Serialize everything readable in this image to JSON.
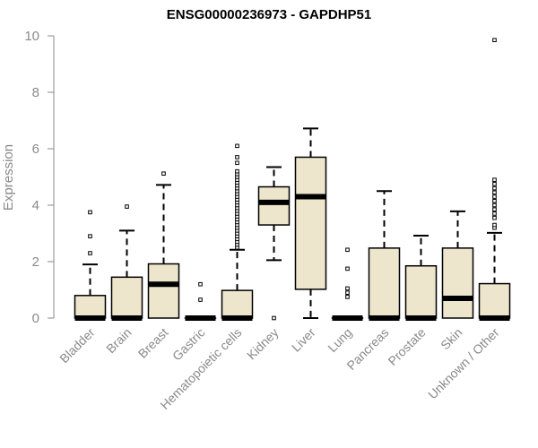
{
  "chart_data": {
    "type": "boxplot",
    "title": "ENSG00000236973 - GAPDHP51",
    "xlabel": "",
    "ylabel": "Expression",
    "ylim": [
      0,
      10
    ],
    "yticks": [
      0,
      2,
      4,
      6,
      8,
      10
    ],
    "grid": false,
    "legend": "none",
    "colors": {
      "box_fill": "#ede6cc",
      "stroke": "#000000",
      "axis": "#8a8a8a"
    },
    "categories": [
      "Bladder",
      "Brain",
      "Breast",
      "Gastric",
      "Hematopoietic cells",
      "Kidney",
      "Liver",
      "Lung",
      "Pancreas",
      "Prostate",
      "Skin",
      "Unknown / Other"
    ],
    "boxes": [
      {
        "category": "Bladder",
        "whisker_low": 0,
        "q1": 0,
        "median": 0,
        "q3": 0.8,
        "whisker_high": 1.9,
        "outliers": [
          2.3,
          2.9,
          3.75
        ]
      },
      {
        "category": "Brain",
        "whisker_low": 0,
        "q1": 0,
        "median": 0,
        "q3": 1.45,
        "whisker_high": 3.1,
        "outliers": [
          3.95
        ]
      },
      {
        "category": "Breast",
        "whisker_low": 0,
        "q1": 0,
        "median": 1.2,
        "q3": 1.92,
        "whisker_high": 4.72,
        "outliers": [
          5.12
        ]
      },
      {
        "category": "Gastric",
        "whisker_low": 0,
        "q1": 0,
        "median": 0,
        "q3": 0,
        "whisker_high": 0,
        "outliers": [
          0.65,
          1.2
        ]
      },
      {
        "category": "Hematopoietic cells",
        "whisker_low": 0,
        "q1": 0,
        "median": 0,
        "q3": 0.98,
        "whisker_high": 2.42,
        "outliers": [
          2.5,
          2.6,
          2.7,
          2.8,
          2.9,
          3.0,
          3.1,
          3.2,
          3.3,
          3.4,
          3.5,
          3.6,
          3.7,
          3.8,
          3.9,
          4.0,
          4.1,
          4.2,
          4.3,
          4.4,
          4.5,
          4.6,
          4.7,
          4.8,
          4.9,
          5.0,
          5.1,
          5.2,
          5.5,
          5.7,
          6.1
        ]
      },
      {
        "category": "Kidney",
        "whisker_low": 2.05,
        "q1": 3.3,
        "median": 4.1,
        "q3": 4.65,
        "whisker_high": 5.35,
        "outliers": [
          0
        ]
      },
      {
        "category": "Liver",
        "whisker_low": 0,
        "q1": 1.02,
        "median": 4.3,
        "q3": 5.7,
        "whisker_high": 6.72,
        "outliers": []
      },
      {
        "category": "Lung",
        "whisker_low": 0,
        "q1": 0,
        "median": 0,
        "q3": 0,
        "whisker_high": 0,
        "outliers": [
          0.75,
          0.9,
          1.05,
          1.75,
          2.42
        ]
      },
      {
        "category": "Pancreas",
        "whisker_low": 0,
        "q1": 0,
        "median": 0,
        "q3": 2.48,
        "whisker_high": 4.5,
        "outliers": []
      },
      {
        "category": "Prostate",
        "whisker_low": 0,
        "q1": 0,
        "median": 0,
        "q3": 1.85,
        "whisker_high": 2.92,
        "outliers": []
      },
      {
        "category": "Skin",
        "whisker_low": 0,
        "q1": 0,
        "median": 0.7,
        "q3": 2.48,
        "whisker_high": 3.78,
        "outliers": []
      },
      {
        "category": "Unknown / Other",
        "whisker_low": 0,
        "q1": 0,
        "median": 0,
        "q3": 1.22,
        "whisker_high": 3.02,
        "outliers": [
          3.2,
          3.3,
          3.55,
          3.7,
          3.85,
          4.0,
          4.15,
          4.3,
          4.45,
          4.6,
          4.75,
          4.9,
          9.85
        ]
      }
    ]
  }
}
